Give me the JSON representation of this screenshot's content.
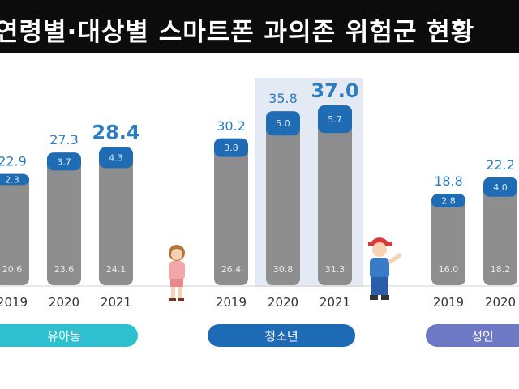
{
  "title": "연령별·대상별 스마트폰 과의존 위험군 현황",
  "colors": {
    "bar": "#8e8e8e",
    "cap": "#1f6cb4",
    "highlight_bg": "#e4eaf3",
    "label": "#2e7dc2",
    "infant_pill": "#2ec0cf",
    "youth_pill": "#1d6ab5",
    "adult_pill": "#6d79c4"
  },
  "chart_data": {
    "type": "bar",
    "title": "연령별·대상별 스마트폰 과의존 위험군 현황",
    "groups": [
      {
        "name": "유아동",
        "categories": [
          "2019",
          "2020",
          "2021"
        ],
        "totals": [
          22.9,
          27.3,
          28.4
        ],
        "high_risk": [
          2.3,
          3.7,
          4.3
        ],
        "potential_risk": [
          20.6,
          23.6,
          24.1
        ],
        "total_labels": [
          "22.9",
          "27.3",
          "28.4"
        ],
        "high_risk_labels": [
          "2.3",
          "3.7",
          "4.3"
        ],
        "potential_risk_labels": [
          "20.6",
          "23.6",
          "24.1"
        ]
      },
      {
        "name": "청소년",
        "categories": [
          "2019",
          "2020",
          "2021"
        ],
        "totals": [
          30.2,
          35.8,
          37.0
        ],
        "high_risk": [
          3.8,
          5.0,
          5.7
        ],
        "potential_risk": [
          26.4,
          30.8,
          31.3
        ],
        "total_labels": [
          "30.2",
          "35.8",
          "37.0"
        ],
        "high_risk_labels": [
          "3.8",
          "5.0",
          "5.7"
        ],
        "potential_risk_labels": [
          "26.4",
          "30.8",
          "31.3"
        ]
      },
      {
        "name": "성인",
        "categories": [
          "2019",
          "2020"
        ],
        "totals": [
          18.8,
          22.2
        ],
        "high_risk": [
          2.8,
          4.0
        ],
        "potential_risk": [
          16.0,
          18.2
        ],
        "total_labels": [
          "18.8",
          "22.2"
        ],
        "high_risk_labels": [
          "2.8",
          "4.0"
        ],
        "potential_risk_labels": [
          "16.0",
          "18.2"
        ]
      }
    ]
  }
}
